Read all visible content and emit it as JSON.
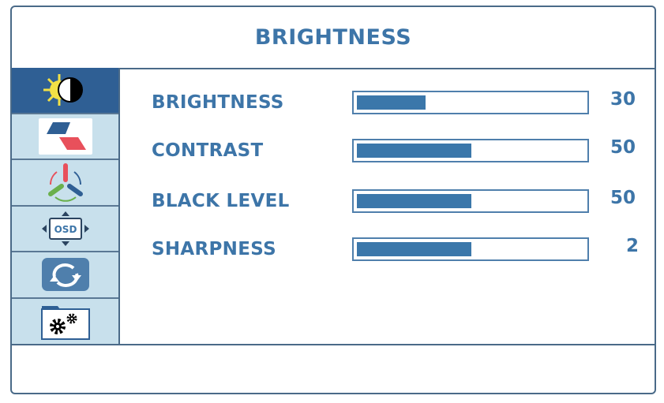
{
  "title": "BRIGHTNESS",
  "sidebar": {
    "items": [
      {
        "icon": "brightness-contrast-icon",
        "selected": true
      },
      {
        "icon": "picture-mode-icon",
        "selected": false
      },
      {
        "icon": "color-icon",
        "selected": false
      },
      {
        "icon": "osd-settings-icon",
        "selected": false
      },
      {
        "icon": "reset-icon",
        "selected": false
      },
      {
        "icon": "system-settings-icon",
        "selected": false
      }
    ]
  },
  "settings": [
    {
      "label": "BRIGHTNESS",
      "value": "30",
      "level": 0.3
    },
    {
      "label": "CONTRAST",
      "value": "50",
      "level": 0.5
    },
    {
      "label": "BLACK LEVEL",
      "value": "50",
      "level": 0.5
    },
    {
      "label": "SHARPNESS",
      "value": "2",
      "level": 0.5
    }
  ],
  "colors": {
    "accent": "#3d75a8",
    "selected": "#2f5f94",
    "sidebar": "#c8e0ec",
    "fill": "#3b77aa"
  }
}
